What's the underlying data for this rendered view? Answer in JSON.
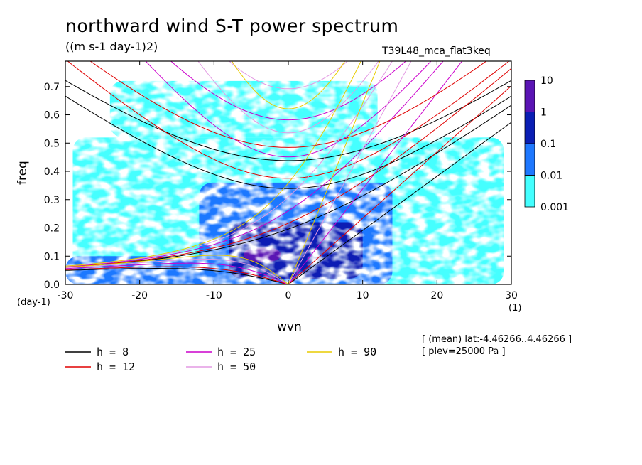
{
  "header": {
    "title": "northward wind S-T power spectrum",
    "units": "((m s-1 day-1)2)",
    "run": "T39L48_mca_flat3keq"
  },
  "footer": {
    "info_line1": "[ (mean) lat:-4.46266..4.46266 ]",
    "info_line2": "[ plev=25000 Pa ]"
  },
  "chart_data": {
    "type": "heatmap",
    "xlabel": "wvn",
    "ylabel": "freq",
    "xunit": "(1)",
    "yunit": "(day-1)",
    "xlim": [
      -30,
      30
    ],
    "ylim": [
      0,
      0.79
    ],
    "xticks": [
      -30,
      -20,
      -10,
      0,
      10,
      20,
      30
    ],
    "xtick_labels": [
      "-30",
      "-20",
      "-10",
      "0",
      "10",
      "20",
      "30"
    ],
    "yticks": [
      0,
      0.1,
      0.2,
      0.3,
      0.4,
      0.5,
      0.6,
      0.7
    ],
    "ytick_labels": [
      "0.0",
      "0.1",
      "0.2",
      "0.3",
      "0.4",
      "0.5",
      "0.6",
      "0.7"
    ],
    "colorbar": {
      "levels": [
        "0.001",
        "0.01",
        "0.1",
        "1",
        "10"
      ],
      "colors": [
        "#44ffff",
        "#1e78ff",
        "#0a1eb4",
        "#5a14b4"
      ]
    },
    "regions": [
      {
        "level": 0,
        "x": [
          -29,
          29
        ],
        "y": [
          0.0,
          0.52
        ]
      },
      {
        "level": 0,
        "x": [
          -24,
          12
        ],
        "y": [
          0.52,
          0.72
        ]
      },
      {
        "level": 1,
        "x": [
          -12,
          14
        ],
        "y": [
          0.0,
          0.36
        ]
      },
      {
        "level": 1,
        "x": [
          -30,
          -8
        ],
        "y": [
          0.0,
          0.1
        ]
      },
      {
        "level": 2,
        "x": [
          -8,
          10
        ],
        "y": [
          0.02,
          0.22
        ]
      },
      {
        "level": 3,
        "x": [
          -6,
          -1
        ],
        "y": [
          0.08,
          0.13
        ]
      }
    ],
    "series": [
      {
        "name": "h =  8",
        "h": 8,
        "color": "#000000"
      },
      {
        "name": "h = 12",
        "h": 12,
        "color": "#e00000"
      },
      {
        "name": "h = 25",
        "h": 25,
        "color": "#cc00cc"
      },
      {
        "name": "h = 50",
        "h": 50,
        "color": "#e39ae3"
      },
      {
        "name": "h = 90",
        "h": 90,
        "color": "#e8cc00"
      }
    ]
  }
}
